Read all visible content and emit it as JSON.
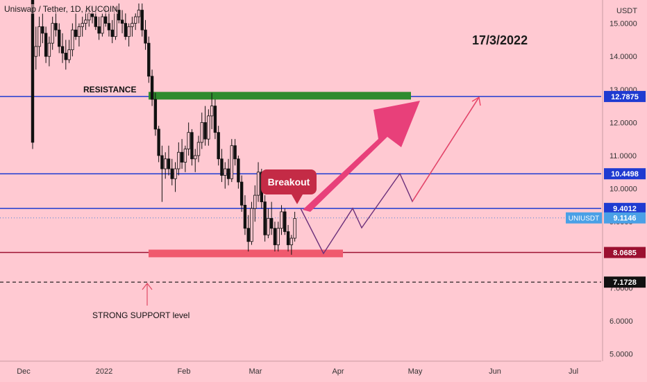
{
  "chart_data": {
    "type": "candlestick",
    "title": "Uniswap / Tether, 1D, KUCOIN",
    "annotation_date": "17/3/2022",
    "y_axis_unit": "USDT",
    "ylim": [
      4.8,
      15.6
    ],
    "y_ticks": [
      "15.0000",
      "14.0000",
      "13.0000",
      "12.0000",
      "11.0000",
      "10.0000",
      "9.0000",
      "8.0000",
      "7.0000",
      "6.0000",
      "5.0000"
    ],
    "x_ticks": [
      "Dec",
      "2022",
      "Feb",
      "Mar",
      "Apr",
      "May",
      "Jun",
      "Jul"
    ],
    "horizontal_levels": [
      {
        "label": "12.7875",
        "value": 12.7875,
        "color": "#1f3bd1"
      },
      {
        "label": "10.4498",
        "value": 10.4498,
        "color": "#1f3bd1"
      },
      {
        "label": "9.4012",
        "value": 9.4012,
        "color": "#1f3bd1"
      },
      {
        "label": "8.0685",
        "value": 8.0685,
        "color": "#9b1030"
      },
      {
        "label": "7.1728",
        "value": 7.1728,
        "color": "#111111",
        "dashed": true
      }
    ],
    "current_price": {
      "symbol": "UNIUSDT",
      "value": "9.1146"
    },
    "zones": [
      {
        "name": "resistance",
        "label": "RESISTANCE",
        "value": 12.8,
        "color": "#2e8b2e"
      },
      {
        "name": "support",
        "label": "STRONG SUPPORT level",
        "value": 8.05,
        "color": "#f05a6e"
      }
    ],
    "callout": "Breakout",
    "candles_ohlc": [
      [
        17.2,
        17.5,
        11.2,
        11.4
      ],
      [
        14.0,
        14.9,
        13.6,
        14.3
      ],
      [
        14.3,
        15.2,
        14.0,
        14.9
      ],
      [
        14.9,
        15.3,
        14.4,
        14.7
      ],
      [
        14.7,
        14.9,
        13.8,
        14.0
      ],
      [
        14.0,
        14.6,
        13.7,
        14.4
      ],
      [
        14.4,
        15.2,
        14.2,
        15.0
      ],
      [
        15.0,
        15.4,
        14.6,
        14.8
      ],
      [
        14.8,
        15.0,
        14.1,
        14.3
      ],
      [
        14.3,
        14.7,
        13.8,
        14.1
      ],
      [
        14.1,
        14.5,
        13.6,
        13.9
      ],
      [
        13.9,
        14.5,
        13.8,
        14.2
      ],
      [
        14.2,
        15.0,
        14.0,
        14.8
      ],
      [
        14.8,
        15.3,
        14.5,
        14.6
      ],
      [
        14.6,
        15.0,
        14.3,
        14.9
      ],
      [
        14.9,
        15.2,
        14.6,
        15.0
      ],
      [
        15.0,
        15.4,
        14.8,
        15.1
      ],
      [
        15.1,
        15.5,
        14.9,
        15.3
      ],
      [
        15.3,
        15.5,
        15.0,
        15.2
      ],
      [
        15.2,
        15.4,
        14.8,
        14.9
      ],
      [
        14.9,
        15.2,
        14.5,
        14.7
      ],
      [
        14.7,
        15.3,
        14.6,
        15.2
      ],
      [
        15.2,
        15.5,
        14.9,
        15.0
      ],
      [
        15.0,
        15.4,
        14.6,
        14.8
      ],
      [
        14.8,
        15.1,
        14.4,
        14.6
      ],
      [
        14.6,
        15.5,
        14.5,
        15.4
      ],
      [
        15.4,
        15.6,
        15.0,
        15.1
      ],
      [
        15.1,
        15.4,
        14.7,
        15.0
      ],
      [
        15.0,
        15.3,
        14.5,
        14.6
      ],
      [
        14.6,
        15.0,
        14.3,
        14.9
      ],
      [
        14.9,
        15.2,
        14.6,
        15.0
      ],
      [
        15.0,
        15.3,
        14.8,
        15.2
      ],
      [
        15.2,
        15.6,
        15.0,
        15.4
      ],
      [
        15.4,
        15.6,
        14.6,
        14.8
      ],
      [
        14.8,
        15.1,
        14.2,
        14.4
      ],
      [
        14.4,
        14.6,
        13.2,
        13.4
      ],
      [
        13.4,
        13.6,
        12.5,
        12.7
      ],
      [
        12.7,
        12.9,
        11.6,
        11.8
      ],
      [
        11.8,
        11.9,
        10.8,
        11.0
      ],
      [
        11.0,
        11.3,
        9.6,
        10.6
      ],
      [
        10.6,
        11.1,
        10.3,
        10.9
      ],
      [
        10.9,
        11.3,
        10.4,
        10.6
      ],
      [
        10.6,
        10.9,
        10.1,
        10.3
      ],
      [
        10.3,
        10.8,
        9.9,
        10.6
      ],
      [
        10.6,
        11.4,
        10.4,
        11.1
      ],
      [
        11.1,
        11.5,
        10.6,
        10.8
      ],
      [
        10.8,
        11.3,
        10.5,
        11.2
      ],
      [
        11.2,
        12.0,
        11.0,
        11.7
      ],
      [
        11.7,
        11.8,
        10.7,
        10.9
      ],
      [
        10.9,
        11.2,
        10.5,
        11.0
      ],
      [
        11.0,
        11.6,
        10.8,
        11.4
      ],
      [
        11.4,
        12.3,
        11.2,
        12.0
      ],
      [
        12.0,
        12.5,
        11.3,
        11.5
      ],
      [
        11.5,
        12.4,
        11.3,
        12.2
      ],
      [
        12.2,
        12.9,
        11.8,
        12.5
      ],
      [
        12.5,
        12.7,
        11.5,
        11.7
      ],
      [
        11.7,
        11.9,
        10.7,
        10.9
      ],
      [
        10.9,
        11.2,
        10.2,
        10.4
      ],
      [
        10.4,
        10.8,
        10.0,
        10.6
      ],
      [
        10.6,
        10.9,
        10.1,
        10.3
      ],
      [
        10.3,
        11.5,
        10.2,
        11.3
      ],
      [
        11.3,
        11.5,
        10.7,
        10.9
      ],
      [
        10.9,
        11.0,
        10.0,
        10.2
      ],
      [
        10.2,
        10.4,
        9.3,
        9.5
      ],
      [
        9.5,
        9.8,
        8.6,
        8.8
      ],
      [
        8.8,
        9.2,
        8.1,
        8.4
      ],
      [
        8.4,
        9.6,
        8.3,
        9.4
      ],
      [
        9.4,
        10.1,
        9.0,
        9.8
      ],
      [
        9.8,
        10.8,
        9.6,
        10.5
      ],
      [
        10.5,
        10.6,
        9.4,
        9.6
      ],
      [
        9.6,
        9.8,
        8.4,
        8.6
      ],
      [
        8.6,
        9.4,
        8.5,
        9.1
      ],
      [
        9.1,
        9.6,
        8.6,
        8.8
      ],
      [
        8.8,
        9.0,
        8.1,
        8.3
      ],
      [
        8.3,
        9.0,
        8.1,
        8.8
      ],
      [
        8.8,
        9.5,
        8.6,
        9.3
      ],
      [
        9.3,
        9.4,
        8.6,
        8.7
      ],
      [
        8.7,
        8.9,
        8.1,
        8.3
      ],
      [
        8.3,
        8.6,
        8.0,
        8.5
      ],
      [
        8.5,
        9.3,
        8.4,
        9.1
      ]
    ]
  }
}
